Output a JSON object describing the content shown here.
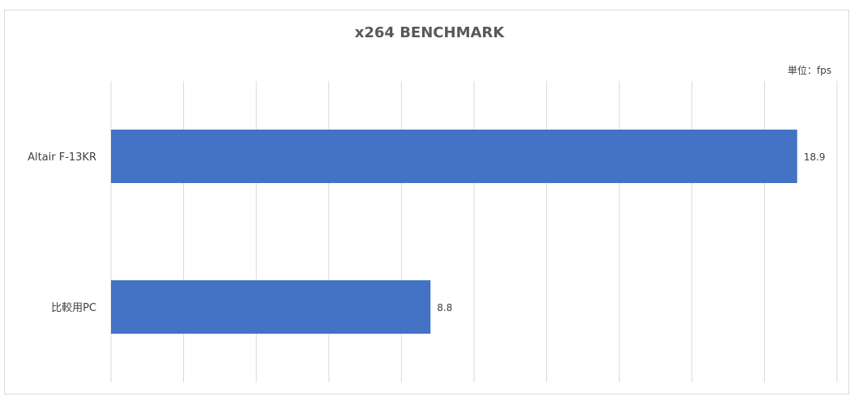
{
  "chart_data": {
    "type": "bar",
    "orientation": "horizontal",
    "title": "x264 BENCHMARK",
    "unit_label": "単位：fps",
    "categories": [
      "Altair F-13KR",
      "比較用PC"
    ],
    "values": [
      18.9,
      8.8
    ],
    "data_labels": [
      "18.9",
      "8.8"
    ],
    "xlim": [
      0,
      20
    ],
    "x_gridlines": 10,
    "grid": true,
    "bar_color": "#4472C4",
    "grid_color": "#d9d9d9"
  }
}
